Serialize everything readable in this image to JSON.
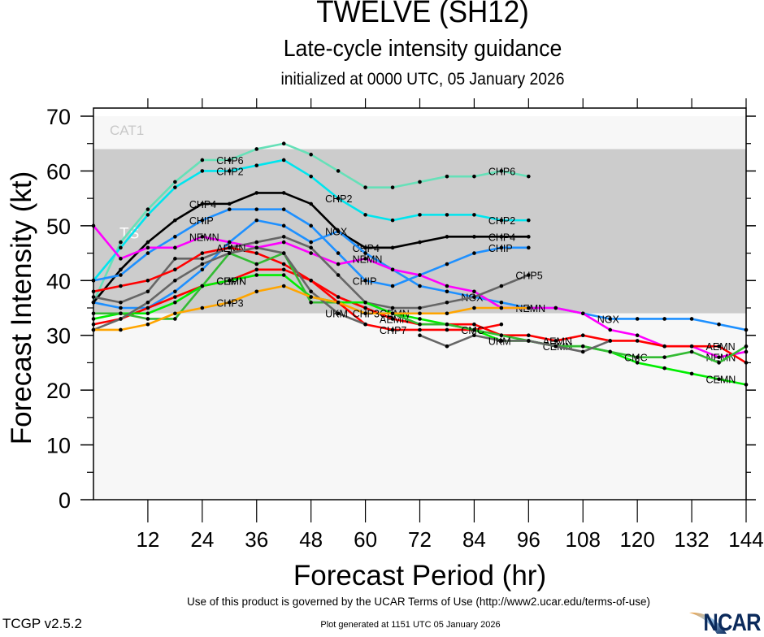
{
  "header": {
    "title": "TWELVE (SH12)",
    "subtitle": "Late-cycle intensity guidance",
    "init_line": "initialized at 0000 UTC, 05 January 2026"
  },
  "footer": {
    "terms": "Use of this product is governed by the UCAR Terms of Use (http://www2.ucar.edu/terms-of-use)",
    "generated": "Plot generated at 1151 UTC   05 January 2026",
    "version": "TCGP v2.5.2",
    "logo_text": "NCAR"
  },
  "chart_data": {
    "type": "line",
    "title": "TWELVE (SH12)",
    "xlabel": "Forecast Period (hr)",
    "ylabel": "Forecast Intensity (kt)",
    "xlim": [
      0,
      144
    ],
    "ylim": [
      0,
      70
    ],
    "xticks": [
      12,
      24,
      36,
      48,
      60,
      72,
      84,
      96,
      108,
      120,
      132,
      144
    ],
    "yticks": [
      0,
      10,
      20,
      30,
      40,
      50,
      60,
      70
    ],
    "bands": [
      {
        "label": "TS",
        "from": 34,
        "to": 64,
        "color": "#cccccc"
      },
      {
        "label": "CAT1",
        "from": 64,
        "to": 70,
        "color": "#f7f7f7"
      },
      {
        "label": "",
        "from": 0,
        "to": 34,
        "color": "#f7f7f7"
      }
    ],
    "legend": "none (inline labels)",
    "x": [
      0,
      6,
      12,
      18,
      24,
      30,
      36,
      42,
      48,
      54,
      60,
      66,
      72,
      78,
      84,
      90,
      96,
      102,
      108,
      114,
      120,
      126,
      132,
      138,
      144
    ],
    "series": [
      {
        "name": "CHP6",
        "color": "#66e0b8",
        "label_at": [
          30,
          90
        ],
        "values": [
          36,
          47,
          53,
          58,
          62,
          62,
          64,
          65,
          63,
          60,
          57,
          57,
          58,
          59,
          59,
          60,
          59,
          null,
          null,
          null,
          null,
          null,
          null,
          null,
          null
        ]
      },
      {
        "name": "CHP2",
        "color": "#00e5ee",
        "label_at": [
          30,
          54,
          90
        ],
        "values": [
          40,
          46,
          52,
          57,
          60,
          60,
          61,
          62,
          59,
          55,
          52,
          51,
          52,
          52,
          52,
          51,
          51,
          null,
          null,
          null,
          null,
          null,
          null,
          null,
          null
        ]
      },
      {
        "name": "CHP4",
        "color": "#000000",
        "label_at": [
          24,
          60,
          90
        ],
        "values": [
          36,
          42,
          47,
          51,
          54,
          54,
          56,
          56,
          54,
          49,
          46,
          46,
          47,
          48,
          48,
          48,
          48,
          null,
          null,
          null,
          null,
          null,
          null,
          null,
          null
        ]
      },
      {
        "name": "CHIP",
        "color": "#1e90ff",
        "label_at": [
          24,
          60,
          90
        ],
        "values": [
          40,
          41,
          45,
          48,
          51,
          53,
          53,
          53,
          50,
          45,
          40,
          39,
          41,
          43,
          45,
          46,
          46,
          null,
          null,
          null,
          null,
          null,
          null,
          null,
          null
        ]
      },
      {
        "name": "NGX",
        "color": "#1e90ff",
        "label_at": [
          54,
          84,
          114
        ],
        "values": [
          36,
          35,
          35,
          38,
          42,
          47,
          51,
          50,
          47,
          49,
          45,
          42,
          39,
          38,
          37,
          36,
          35,
          35,
          34,
          33,
          33,
          33,
          33,
          32,
          31
        ]
      },
      {
        "name": "NEMN",
        "color": "#ff00ff",
        "label_at": [
          24,
          60,
          96,
          138
        ],
        "values": [
          50,
          44,
          46,
          46,
          48,
          47,
          46,
          47,
          45,
          43,
          44,
          42,
          41,
          39,
          38,
          35,
          35,
          35,
          34,
          31,
          30,
          28,
          28,
          26,
          27
        ]
      },
      {
        "name": "CHP5",
        "color": "#666666",
        "label_at": [
          96
        ],
        "values": [
          37,
          36,
          38,
          44,
          44,
          46,
          47,
          48,
          46,
          41,
          36,
          35,
          35,
          36,
          37,
          39,
          41,
          null,
          null,
          null,
          null,
          null,
          null,
          null,
          null
        ]
      },
      {
        "name": "AEMN",
        "color": "#ff0000",
        "label_at": [
          30,
          66,
          102,
          138
        ],
        "values": [
          38,
          39,
          40,
          42,
          45,
          46,
          45,
          43,
          40,
          37,
          35,
          33,
          32,
          32,
          32,
          30,
          30,
          29,
          30,
          29,
          29,
          28,
          28,
          28,
          25
        ]
      },
      {
        "name": "CHP7",
        "color": "#ff0000",
        "label_at": [
          30,
          66
        ],
        "values": [
          32,
          33,
          35,
          37,
          39,
          40,
          42,
          42,
          40,
          36,
          32,
          31,
          31,
          31,
          31,
          32,
          null,
          null,
          null,
          null,
          null,
          null,
          null,
          null,
          null
        ]
      },
      {
        "name": "CEMN",
        "color": "#00ee00",
        "label_at": [
          30,
          66,
          102,
          138
        ],
        "values": [
          33,
          34,
          34,
          36,
          39,
          40,
          41,
          41,
          37,
          36,
          36,
          34,
          33,
          32,
          31,
          29,
          29,
          28,
          28,
          27,
          25,
          24,
          23,
          22,
          21
        ]
      },
      {
        "name": "CMC",
        "color": "#33bb33",
        "label_at": [
          84,
          120
        ],
        "values": [
          34,
          34,
          33,
          33,
          39,
          45,
          43,
          45,
          36,
          36,
          null,
          34,
          32,
          32,
          31,
          30,
          29,
          28,
          28,
          27,
          26,
          26,
          27,
          25,
          28
        ]
      },
      {
        "name": "UKM",
        "color": "#666666",
        "label_at": [
          54,
          90
        ],
        "values": [
          31,
          33,
          36,
          40,
          43,
          45,
          46,
          45,
          38,
          34,
          32,
          null,
          30,
          28,
          30,
          29,
          29,
          28,
          27,
          29,
          null,
          null,
          null,
          null,
          null
        ]
      },
      {
        "name": "CHP3",
        "color": "#ffa500",
        "label_at": [
          30,
          60
        ],
        "values": [
          31,
          31,
          32,
          34,
          35,
          36,
          38,
          39,
          37,
          36,
          34,
          34,
          34,
          34,
          35,
          35,
          35,
          null,
          null,
          null,
          null,
          null,
          null,
          null,
          null
        ]
      }
    ]
  }
}
